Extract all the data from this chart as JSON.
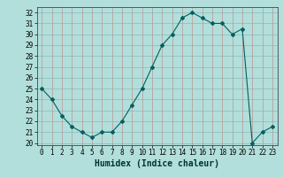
{
  "x_data": [
    0,
    1,
    2,
    3,
    4,
    5,
    6,
    7,
    8,
    9,
    10,
    11,
    12,
    13,
    14,
    15,
    16,
    17,
    18,
    19,
    20,
    21,
    22,
    23
  ],
  "y_data": [
    25,
    24,
    22.5,
    21.5,
    21,
    20.5,
    21,
    21,
    22,
    23.5,
    25,
    27,
    29,
    30,
    31.5,
    32,
    31.5,
    31,
    31,
    30,
    30.5,
    20,
    21,
    21.5
  ],
  "line_color": "#006060",
  "marker": "D",
  "marker_size": 2,
  "bg_color": "#b2dfdb",
  "grid_major_color": "#a0c0bc",
  "grid_minor_color": "#c8e8e4",
  "xlabel": "Humidex (Indice chaleur)",
  "ylabel_ticks": [
    20,
    21,
    22,
    23,
    24,
    25,
    26,
    27,
    28,
    29,
    30,
    31,
    32
  ],
  "xlim": [
    -0.5,
    23.5
  ],
  "ylim": [
    19.8,
    32.5
  ],
  "xticks": [
    0,
    1,
    2,
    3,
    4,
    5,
    6,
    7,
    8,
    9,
    10,
    11,
    12,
    13,
    14,
    15,
    16,
    17,
    18,
    19,
    20,
    21,
    22,
    23
  ],
  "tick_fontsize": 5.5,
  "xlabel_fontsize": 7,
  "title_color": "#003333"
}
